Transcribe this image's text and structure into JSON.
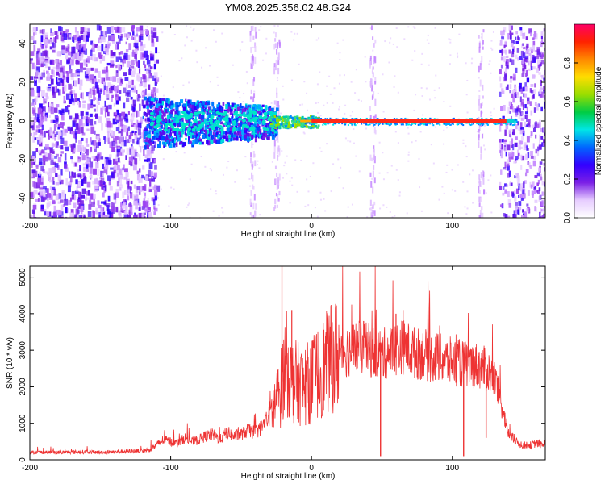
{
  "title": "YM08.2025.356.02.48.G24",
  "chart_data": [
    {
      "type": "heatmap",
      "xlabel": "Height of straight line (km)",
      "ylabel": "Frequency (Hz)",
      "xlim": [
        -200,
        166
      ],
      "ylim": [
        -50,
        50
      ],
      "x_ticks": [
        -200,
        -100,
        0,
        100
      ],
      "y_ticks": [
        -40,
        -20,
        0,
        20,
        40
      ],
      "colorbar": {
        "label": "Normalized spectral amplitude",
        "range": [
          0,
          1
        ],
        "ticks": [
          "0.0",
          "0.2",
          "0.4",
          "0.6",
          "0.8"
        ],
        "colors": [
          "#ffffff",
          "#e6ccff",
          "#7a1fe6",
          "#3300ff",
          "#0066ff",
          "#00e6e6",
          "#00cc44",
          "#99dd00",
          "#ffdd00",
          "#ff8800",
          "#ff2200",
          "#ff0066"
        ]
      },
      "features": {
        "dominant_line": {
          "frequency_hz": 0,
          "from_km": 0,
          "to_km": 143,
          "amplitude": 0.95
        },
        "noisy_scatter_bounds_km": [
          -200,
          -120
        ],
        "right_edge_noise_km": [
          133,
          166
        ],
        "vertical_streaks_km": [
          -42,
          -25,
          43,
          120
        ]
      }
    },
    {
      "type": "line",
      "xlabel": "Height of straight line (km)",
      "ylabel": "SNR (10 * v/v)",
      "xlim": [
        -200,
        166
      ],
      "ylim": [
        0,
        5300
      ],
      "x_ticks": [
        -200,
        -100,
        0,
        100
      ],
      "y_ticks": [
        0,
        1000,
        2000,
        3000,
        4000,
        5000
      ],
      "color": "#ee3333",
      "series": [
        {
          "x": [
            -200,
            -190,
            -180,
            -170,
            -160,
            -150,
            -140,
            -130,
            -120,
            -115,
            -110,
            -105,
            -100,
            -95,
            -90,
            -85,
            -80,
            -75,
            -70,
            -65,
            -60,
            -55,
            -50,
            -45,
            -40,
            -35,
            -30,
            -25,
            -22,
            -20,
            -18,
            -15,
            -10,
            -5,
            0,
            5,
            10,
            15,
            20,
            25,
            30,
            35,
            40,
            45,
            50,
            55,
            60,
            65,
            70,
            75,
            80,
            85,
            90,
            95,
            100,
            105,
            110,
            115,
            120,
            125,
            130,
            135,
            140,
            145,
            150,
            155,
            160,
            166
          ],
          "y": [
            200,
            210,
            200,
            210,
            220,
            200,
            220,
            230,
            250,
            280,
            400,
            550,
            500,
            450,
            600,
            500,
            550,
            650,
            700,
            550,
            750,
            650,
            700,
            800,
            750,
            900,
            1200,
            1600,
            1900,
            2400,
            2700,
            2200,
            2100,
            2000,
            2200,
            2400,
            2600,
            2800,
            2950,
            3000,
            3050,
            3100,
            3000,
            2950,
            2900,
            2950,
            3050,
            3100,
            3000,
            2900,
            2900,
            2800,
            2800,
            2700,
            2700,
            2650,
            2600,
            2600,
            2550,
            2450,
            2200,
            1500,
            700,
            500,
            400,
            400,
            450,
            400
          ],
          "spikes": [
            {
              "x": -21,
              "y": 5300
            },
            {
              "x": -14,
              "y": 4100
            },
            {
              "x": 10,
              "y": 3400
            },
            {
              "x": 60,
              "y": 4000
            },
            {
              "x": 65,
              "y": 4100
            },
            {
              "x": 37,
              "y": 3800
            }
          ],
          "dips": [
            {
              "x": 49,
              "y": 100
            },
            {
              "x": 108,
              "y": 100
            },
            {
              "x": 124,
              "y": 600
            }
          ]
        }
      ]
    }
  ]
}
